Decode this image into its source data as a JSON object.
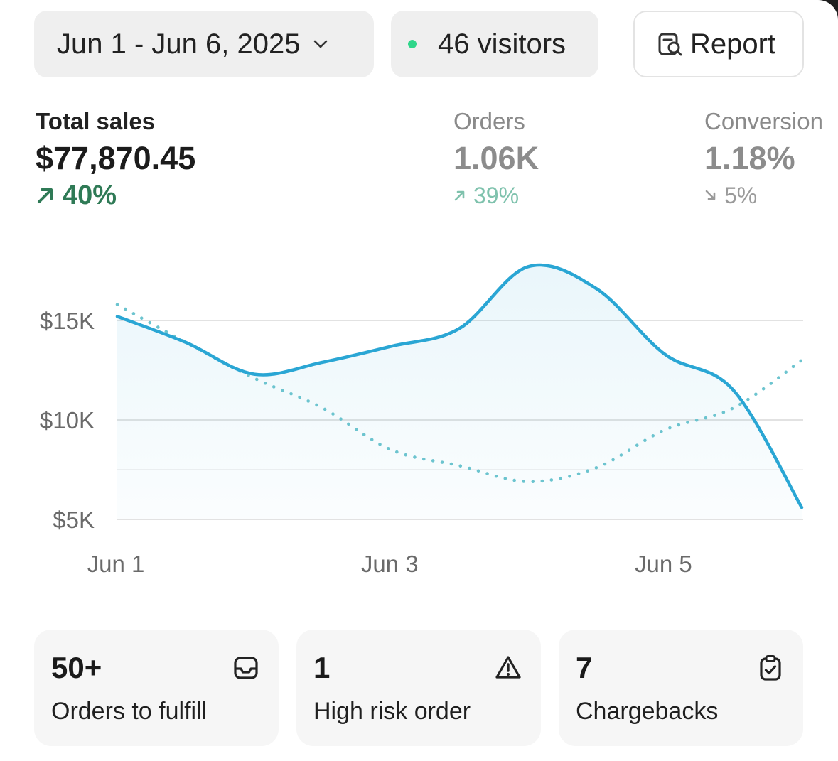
{
  "header": {
    "date_range": "Jun 1 - Jun 6, 2025",
    "visitors": "46 visitors",
    "report_label": "Report"
  },
  "metrics": {
    "total_sales": {
      "label": "Total sales",
      "value": "$77,870.45",
      "delta": "40%",
      "trend": "up"
    },
    "orders": {
      "label": "Orders",
      "value": "1.06K",
      "delta": "39%",
      "trend": "up"
    },
    "conversion": {
      "label": "Conversion",
      "value": "1.18%",
      "delta": "5%",
      "trend": "down"
    }
  },
  "colors": {
    "accent": "#2aa6d4",
    "accent_dotted": "#6cc4cf",
    "positive": "#2f7a56",
    "live_dot": "#2fd68a"
  },
  "chart_data": {
    "type": "line",
    "x": [
      "Jun 1",
      "Jun 1.5",
      "Jun 2",
      "Jun 2.5",
      "Jun 3",
      "Jun 3.5",
      "Jun 4",
      "Jun 4.5",
      "Jun 5",
      "Jun 5.5",
      "Jun 6"
    ],
    "x_ticks": [
      "Jun 1",
      "Jun 3",
      "Jun 5"
    ],
    "y_ticks": [
      "$15K",
      "$10K",
      "$5K"
    ],
    "ylim": [
      5000,
      15000
    ],
    "grid": true,
    "legend": "none",
    "series": [
      {
        "style": "solid",
        "values": [
          15200,
          13900,
          12300,
          12900,
          13700,
          14600,
          17700,
          16600,
          13300,
          11500,
          5600
        ]
      },
      {
        "style": "dotted",
        "values": [
          15800,
          13900,
          12100,
          10600,
          8500,
          7700,
          6900,
          7600,
          9500,
          10600,
          13000
        ]
      }
    ]
  },
  "stats": [
    {
      "value": "50+",
      "label": "Orders to fulfill",
      "icon": "inbox-icon"
    },
    {
      "value": "1",
      "label": "High risk order",
      "icon": "warning-icon"
    },
    {
      "value": "7",
      "label": "Chargebacks",
      "icon": "clipboard-check-icon"
    }
  ]
}
